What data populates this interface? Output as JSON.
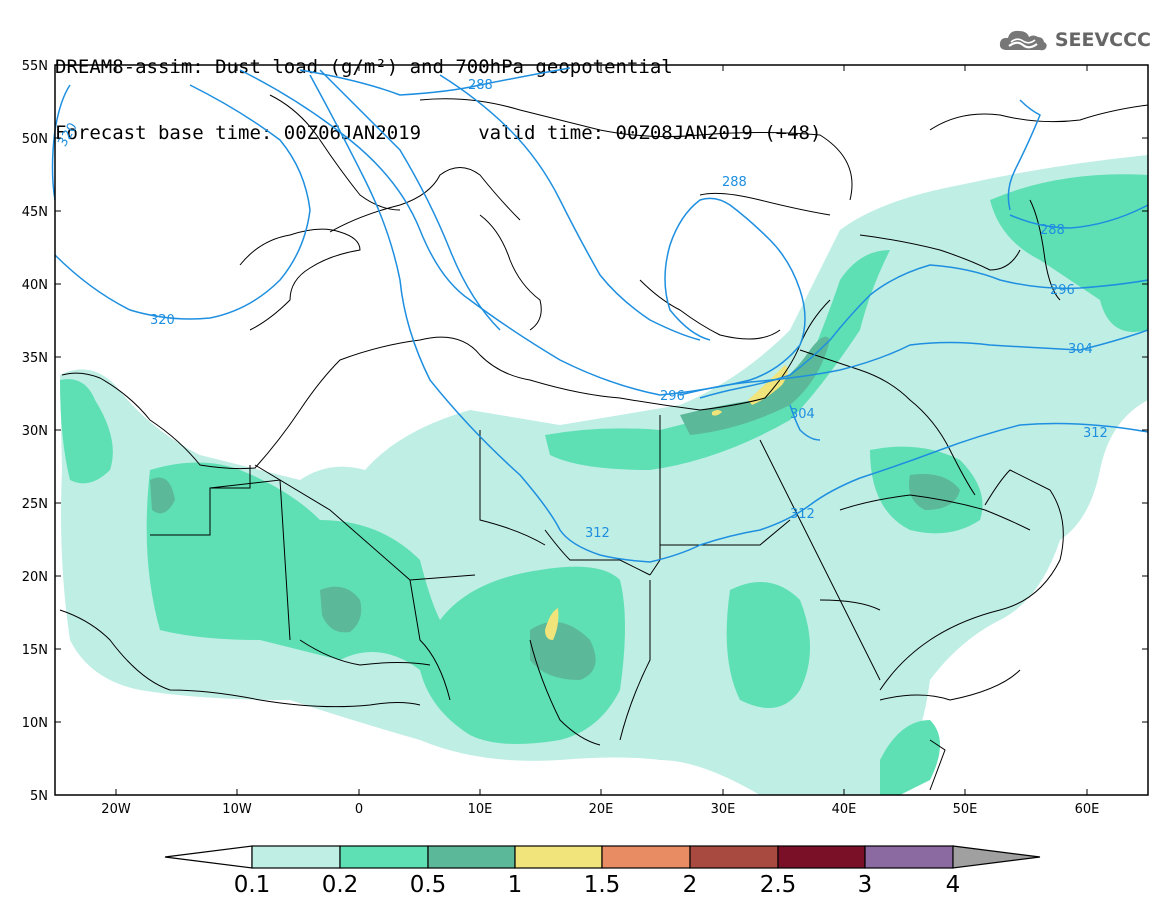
{
  "title": {
    "line1": "DREAM8-assim: Dust load (g/m²) and 700hPa geopotential",
    "line2": "Forecast base time: 00Z06JAN2019     valid time: 00Z08JAN2019 (+48)"
  },
  "logo": {
    "text": "SEEVCCC",
    "icon": "cloud-icon"
  },
  "map": {
    "lon_range": [
      -25,
      65
    ],
    "lat_range": [
      5,
      55
    ],
    "lat_labels": [
      "55N",
      "50N",
      "45N",
      "40N",
      "35N",
      "30N",
      "25N",
      "20N",
      "15N",
      "10N",
      "5N"
    ],
    "lon_labels": [
      "20W",
      "10W",
      "0",
      "10E",
      "20E",
      "30E",
      "40E",
      "50E",
      "60E"
    ],
    "contour_labels": [
      "288",
      "320",
      "320",
      "288",
      "296",
      "304",
      "312",
      "312",
      "288",
      "296",
      "304",
      "312"
    ],
    "contour_color": "#1e8fe0"
  },
  "colorbar": {
    "labels": [
      "0.1",
      "0.2",
      "0.5",
      "1",
      "1.5",
      "2",
      "2.5",
      "3",
      "4"
    ],
    "colors": [
      "#bfeee4",
      "#5ee0b4",
      "#5bb898",
      "#f0e47a",
      "#e88c64",
      "#a84a40",
      "#7a0f28",
      "#8a6aa0"
    ]
  }
}
